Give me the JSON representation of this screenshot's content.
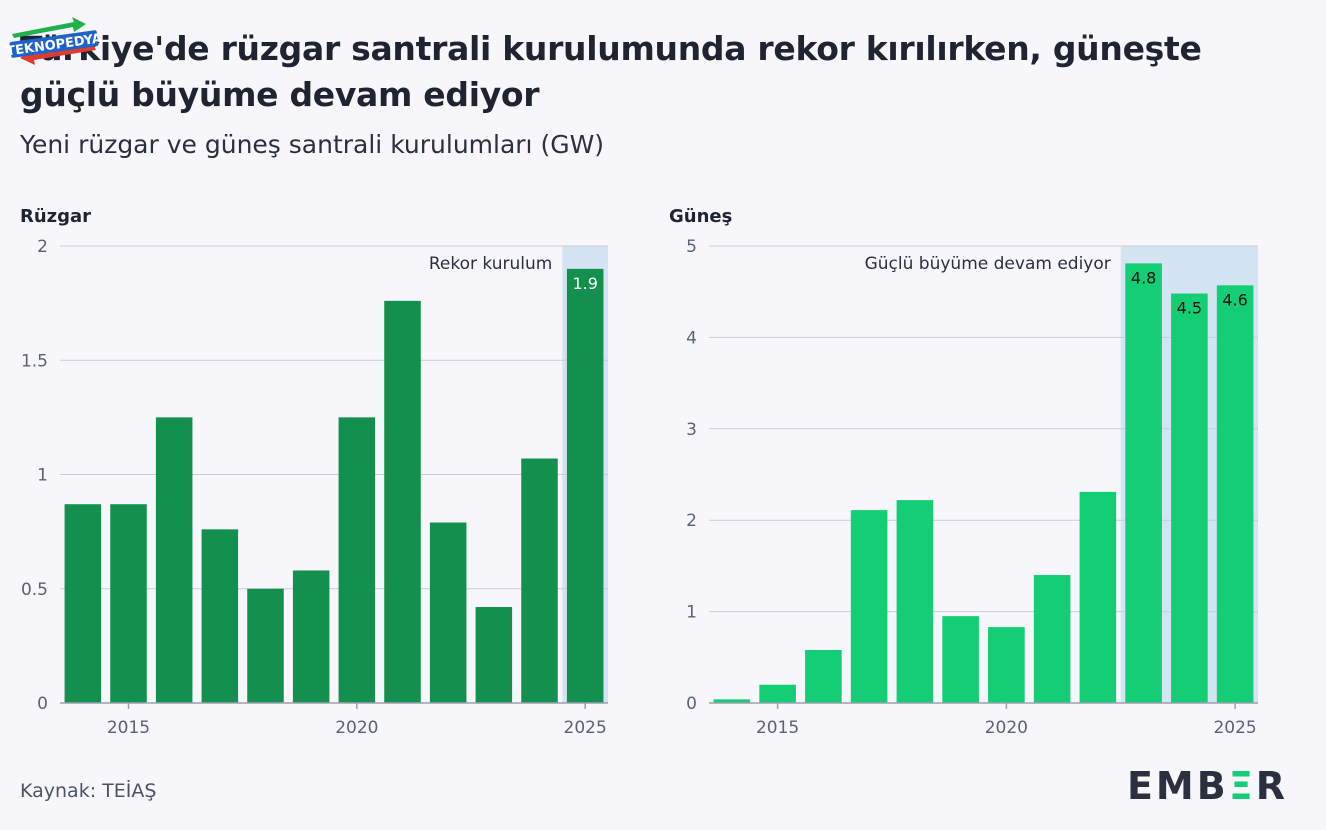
{
  "header": {
    "title": "Türkiye'de rüzgar santrali kurulumunda rekor kırılırken, güneşte güçlü büyüme devam ediyor",
    "subtitle": "Yeni rüzgar ve güneş santrali kurulumları (GW)"
  },
  "watermark": {
    "text": "TEKNOPEDYA"
  },
  "footer": {
    "source": "Kaynak: TEİAŞ",
    "brand_left": "EMB",
    "brand_mid": "Ξ",
    "brand_right": "R"
  },
  "colors": {
    "wind": "#13904e",
    "solar": "#13ce74",
    "highlight": "#d4e4f3",
    "wind_label": "#ffffff",
    "solar_label": "#111111"
  },
  "chart_data": [
    {
      "type": "bar",
      "title": "Rüzgar",
      "categories": [
        2014,
        2015,
        2016,
        2017,
        2018,
        2019,
        2020,
        2021,
        2022,
        2023,
        2024,
        2025
      ],
      "values": [
        0.87,
        0.87,
        1.25,
        0.76,
        0.5,
        0.58,
        1.25,
        1.76,
        0.79,
        0.42,
        1.07,
        1.9
      ],
      "ylim": [
        0,
        2
      ],
      "yticks": [
        0,
        0.5,
        1,
        1.5,
        2
      ],
      "yticklabels": [
        "0",
        "0.5",
        "1",
        "1.5",
        "2"
      ],
      "xticks": [
        2015,
        2020,
        2025
      ],
      "xticklabels": [
        "2015",
        "2020",
        "2025"
      ],
      "highlight": {
        "from": 2025,
        "to": 2025,
        "label": "Rekor kurulum"
      },
      "data_labels": [
        {
          "year": 2025,
          "text": "1.9"
        }
      ],
      "color_key": "wind",
      "label_color_key": "wind_label"
    },
    {
      "type": "bar",
      "title": "Güneş",
      "categories": [
        2014,
        2015,
        2016,
        2017,
        2018,
        2019,
        2020,
        2021,
        2022,
        2023,
        2024,
        2025
      ],
      "values": [
        0.04,
        0.2,
        0.58,
        2.11,
        2.22,
        0.95,
        0.83,
        1.4,
        2.31,
        4.81,
        4.48,
        4.57
      ],
      "ylim": [
        0,
        5
      ],
      "yticks": [
        0,
        1,
        2,
        3,
        4,
        5
      ],
      "yticklabels": [
        "0",
        "1",
        "2",
        "3",
        "4",
        "5"
      ],
      "xticks": [
        2015,
        2020,
        2025
      ],
      "xticklabels": [
        "2015",
        "2020",
        "2025"
      ],
      "highlight": {
        "from": 2023,
        "to": 2025,
        "label": "Güçlü büyüme devam ediyor"
      },
      "data_labels": [
        {
          "year": 2023,
          "text": "4.8"
        },
        {
          "year": 2024,
          "text": "4.5"
        },
        {
          "year": 2025,
          "text": "4.6"
        }
      ],
      "color_key": "solar",
      "label_color_key": "solar_label"
    }
  ]
}
